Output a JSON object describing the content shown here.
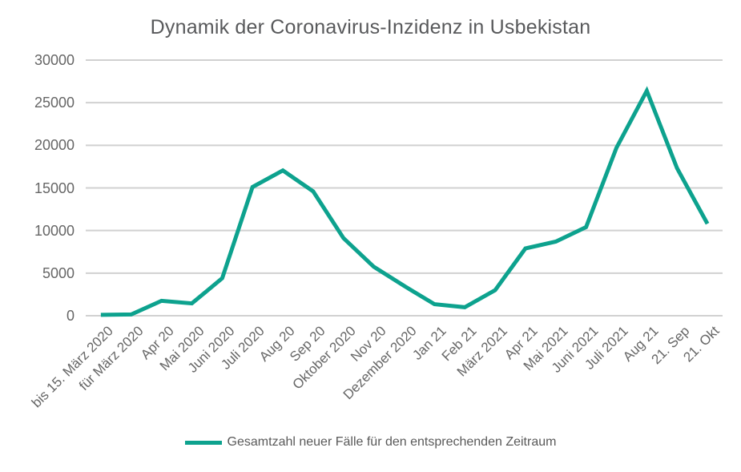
{
  "title": "Dynamik der Coronavirus-Inzidenz in Usbekistan",
  "legend": {
    "label": "Gesamtzahl neuer Fälle für den entsprechenden Zeitraum"
  },
  "colors": {
    "series": "#0DA28E",
    "grid": "#D1D1D1",
    "title_text": "#58595B",
    "axis_text": "#666666",
    "legend_text": "#595959",
    "background": "#FFFFFF"
  },
  "chart_data": {
    "type": "line",
    "title": "Dynamik der Coronavirus-Inzidenz in Usbekistan",
    "xlabel": "",
    "ylabel": "",
    "categories": [
      "bis 15. März 2020",
      "für März 2020",
      "Apr 20",
      "Mai 2020",
      "Juni 2020",
      "Juli 2020",
      "Aug 20",
      "Sep 20",
      "Oktober 2020",
      "Nov 20",
      "Dezember 2020",
      "Jan 21",
      "Feb 21",
      "März 2021",
      "Apr 21",
      "Mai 2021",
      "Juni 2021",
      "Juli 2021",
      "Aug 21",
      "21. Sep",
      "21. Okt"
    ],
    "series": [
      {
        "name": "Gesamtzahl neuer Fälle für den entsprechenden Zeitraum",
        "values": [
          100,
          150,
          1750,
          1450,
          4400,
          15100,
          17050,
          14600,
          9100,
          5750,
          3500,
          1350,
          1000,
          3000,
          7900,
          8700,
          10400,
          19700,
          26400,
          17300,
          10800
        ]
      }
    ],
    "ylim": [
      0,
      30000
    ],
    "yticks": [
      0,
      5000,
      10000,
      15000,
      20000,
      25000,
      30000
    ],
    "grid": true,
    "legend_position": "bottom"
  }
}
